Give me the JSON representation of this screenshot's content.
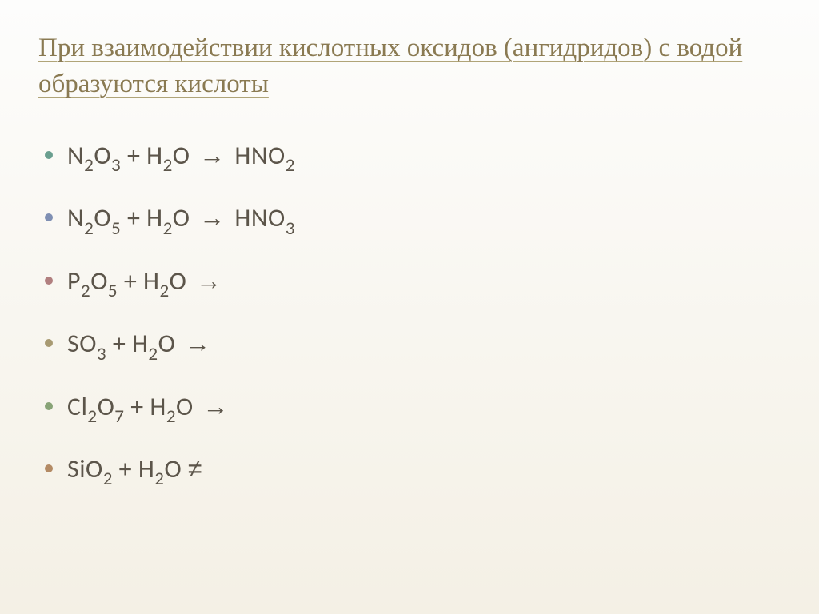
{
  "slide": {
    "title": "При взаимодействии кислотных оксидов (ангидридов) с водой образуются кислоты",
    "title_color": "#8a7a52",
    "title_fontsize": 33,
    "background_gradient_top": "#fdfdfc",
    "background_gradient_bottom": "#f4f0e5",
    "body_text_color": "#5c554a",
    "body_fontsize": 32,
    "bullets": [
      {
        "color": "#6a9f8f",
        "formula_html": "N<sub>2</sub>O<sub>3</sub> + H<sub>2</sub>O <span class='arrow'>→</span> HNO<sub>2</sub>"
      },
      {
        "color": "#7f8fb3",
        "formula_html": "N<sub>2</sub>O<sub>5</sub> + H<sub>2</sub>O <span class='arrow'>→</span> HNO<sub>3</sub>"
      },
      {
        "color": "#b17f7f",
        "formula_html": "P<sub>2</sub>O<sub>5</sub> + H<sub>2</sub>O <span class='arrow'>→</span>"
      },
      {
        "color": "#a89a72",
        "formula_html": "SO<sub>3</sub> + H<sub>2</sub>O <span class='arrow'>→</span>"
      },
      {
        "color": "#88a377",
        "formula_html": "Cl<sub>2</sub>O<sub>7</sub> + H<sub>2</sub>O <span class='arrow'>→</span>"
      },
      {
        "color": "#b38a64",
        "formula_html": "SiO<sub>2</sub> + H<sub>2</sub>O <span class='neq'>≠</span>"
      }
    ]
  }
}
